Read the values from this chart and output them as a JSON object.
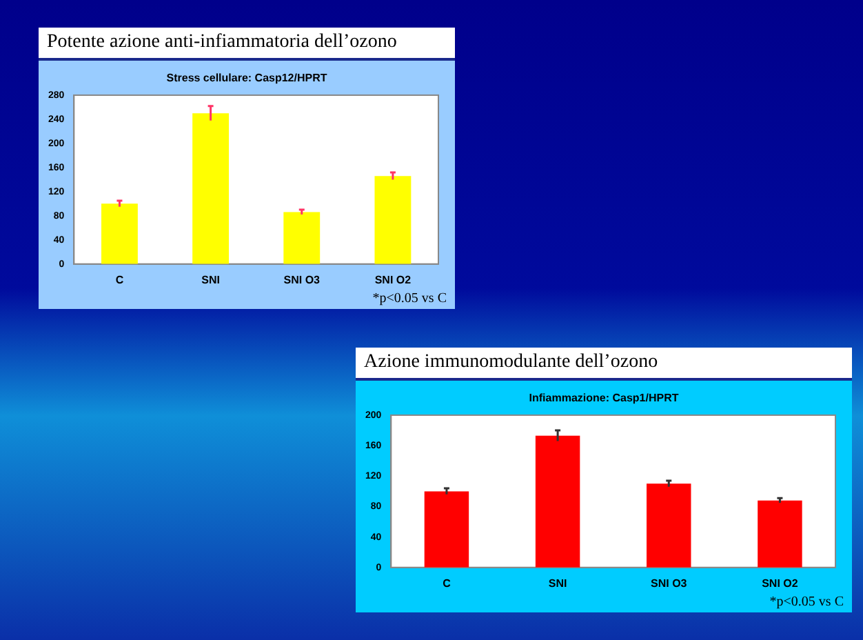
{
  "chart_data": [
    {
      "type": "bar",
      "title": "Potente azione anti-infiammatoria dell’ozono",
      "subtitle": "Stress cellulare: Casp12/HPRT",
      "categories": [
        "C",
        "SNI",
        "SNI O3",
        "SNI O2"
      ],
      "series": [
        {
          "color": "#ffff00",
          "values": [
            100,
            250,
            86,
            146
          ],
          "errors": [
            5,
            12,
            4,
            6
          ]
        }
      ],
      "ylim": [
        0,
        280
      ],
      "yticks": [
        0,
        40,
        80,
        120,
        160,
        200,
        240,
        280
      ],
      "grid": false,
      "legend": false,
      "annotations": [
        "*p<0.05 vs C"
      ]
    },
    {
      "type": "bar",
      "title": "Azione immunomodulante dell’ozono",
      "subtitle": "Infiammazione: Casp1/HPRT",
      "categories": [
        "C",
        "SNI",
        "SNI O3",
        "SNI O2"
      ],
      "series": [
        {
          "color": "#ff0000",
          "values": [
            100,
            173,
            110,
            88
          ],
          "errors": [
            4,
            7,
            4,
            3
          ]
        }
      ],
      "ylim": [
        0,
        200
      ],
      "yticks": [
        0,
        40,
        80,
        120,
        160,
        200
      ],
      "grid": false,
      "legend": false,
      "annotations": [
        "*p<0.05 vs C"
      ]
    }
  ]
}
